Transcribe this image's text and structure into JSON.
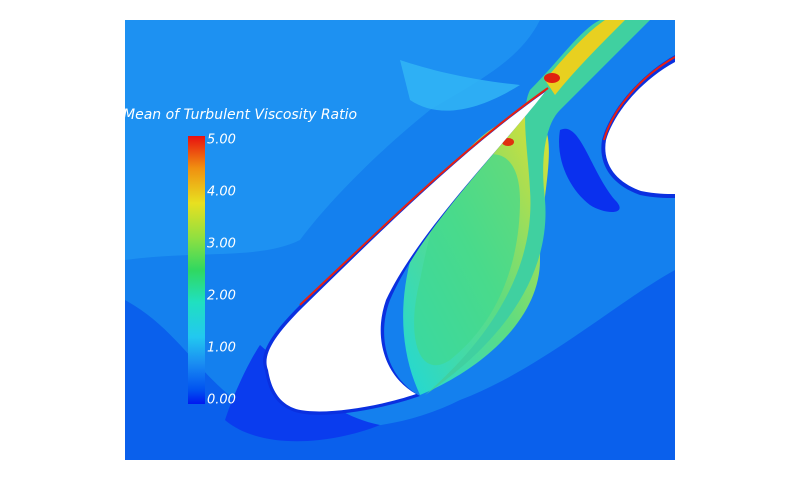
{
  "chart_data": {
    "type": "contour",
    "title": "Mean of Turbulent Viscosity Ratio",
    "colorbar": {
      "clim": [
        0,
        5
      ],
      "ticks": [
        {
          "value": 0,
          "label": "0.00"
        },
        {
          "value": 1,
          "label": "1.00"
        },
        {
          "value": 2,
          "label": "2.00"
        },
        {
          "value": 3,
          "label": "3.00"
        },
        {
          "value": 4,
          "label": "4.00"
        },
        {
          "value": 5,
          "label": "5.00"
        }
      ]
    }
  }
}
